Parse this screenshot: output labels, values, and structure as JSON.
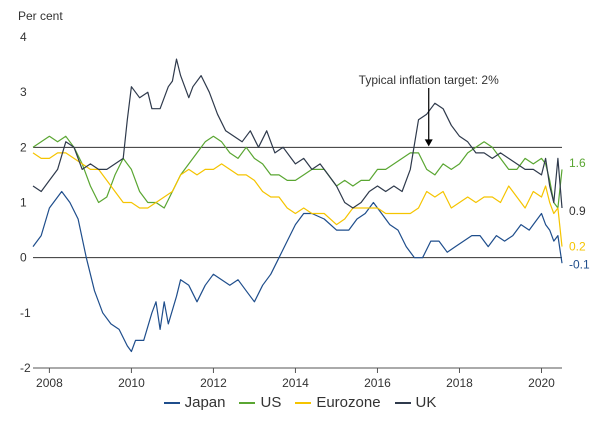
{
  "chart_data": {
    "type": "line",
    "ylabel": "Per cent",
    "xlim": [
      2007.6,
      2020.5
    ],
    "ylim": [
      -2,
      4
    ],
    "x_ticks": [
      2008,
      2010,
      2012,
      2014,
      2016,
      2018,
      2020
    ],
    "y_ticks": [
      4,
      3,
      2,
      1,
      0,
      -1,
      -2
    ],
    "reference_lines": [
      {
        "y": 2,
        "label": "Typical inflation target: 2%",
        "x": 2017.25
      },
      {
        "y": 0
      }
    ],
    "grid": false,
    "legend_position": "bottom",
    "series": [
      {
        "name": "Japan",
        "color": "#1f4e8c",
        "end_label": "-0.1",
        "points": [
          [
            2007.6,
            0.2
          ],
          [
            2007.8,
            0.4
          ],
          [
            2008.0,
            0.9
          ],
          [
            2008.3,
            1.2
          ],
          [
            2008.5,
            1.0
          ],
          [
            2008.7,
            0.7
          ],
          [
            2008.9,
            0.0
          ],
          [
            2009.1,
            -0.6
          ],
          [
            2009.3,
            -1.0
          ],
          [
            2009.5,
            -1.2
          ],
          [
            2009.7,
            -1.3
          ],
          [
            2009.9,
            -1.6
          ],
          [
            2010.0,
            -1.7
          ],
          [
            2010.1,
            -1.5
          ],
          [
            2010.3,
            -1.5
          ],
          [
            2010.5,
            -1.0
          ],
          [
            2010.6,
            -0.8
          ],
          [
            2010.7,
            -1.3
          ],
          [
            2010.8,
            -0.8
          ],
          [
            2010.9,
            -1.2
          ],
          [
            2011.1,
            -0.7
          ],
          [
            2011.2,
            -0.4
          ],
          [
            2011.4,
            -0.5
          ],
          [
            2011.6,
            -0.8
          ],
          [
            2011.8,
            -0.5
          ],
          [
            2012.0,
            -0.3
          ],
          [
            2012.2,
            -0.4
          ],
          [
            2012.4,
            -0.5
          ],
          [
            2012.6,
            -0.4
          ],
          [
            2012.8,
            -0.6
          ],
          [
            2013.0,
            -0.8
          ],
          [
            2013.2,
            -0.5
          ],
          [
            2013.4,
            -0.3
          ],
          [
            2013.6,
            0.0
          ],
          [
            2013.8,
            0.3
          ],
          [
            2014.0,
            0.6
          ],
          [
            2014.2,
            0.8
          ],
          [
            2014.4,
            0.8
          ],
          [
            2014.7,
            0.7
          ],
          [
            2015.0,
            0.5
          ],
          [
            2015.3,
            0.5
          ],
          [
            2015.5,
            0.7
          ],
          [
            2015.7,
            0.8
          ],
          [
            2015.9,
            1.0
          ],
          [
            2016.1,
            0.8
          ],
          [
            2016.3,
            0.6
          ],
          [
            2016.5,
            0.5
          ],
          [
            2016.7,
            0.2
          ],
          [
            2016.9,
            0.0
          ],
          [
            2017.1,
            0.0
          ],
          [
            2017.3,
            0.3
          ],
          [
            2017.5,
            0.3
          ],
          [
            2017.7,
            0.1
          ],
          [
            2017.9,
            0.2
          ],
          [
            2018.1,
            0.3
          ],
          [
            2018.3,
            0.4
          ],
          [
            2018.5,
            0.4
          ],
          [
            2018.7,
            0.2
          ],
          [
            2018.9,
            0.4
          ],
          [
            2019.1,
            0.3
          ],
          [
            2019.3,
            0.4
          ],
          [
            2019.5,
            0.6
          ],
          [
            2019.7,
            0.5
          ],
          [
            2019.9,
            0.7
          ],
          [
            2020.0,
            0.8
          ],
          [
            2020.1,
            0.6
          ],
          [
            2020.2,
            0.5
          ],
          [
            2020.3,
            0.3
          ],
          [
            2020.4,
            0.4
          ],
          [
            2020.5,
            -0.1
          ]
        ]
      },
      {
        "name": "US",
        "color": "#5aa632",
        "end_label": "1.6",
        "points": [
          [
            2007.6,
            2.0
          ],
          [
            2007.8,
            2.1
          ],
          [
            2008.0,
            2.2
          ],
          [
            2008.2,
            2.1
          ],
          [
            2008.4,
            2.2
          ],
          [
            2008.6,
            2.0
          ],
          [
            2008.8,
            1.7
          ],
          [
            2009.0,
            1.3
          ],
          [
            2009.2,
            1.0
          ],
          [
            2009.4,
            1.1
          ],
          [
            2009.6,
            1.5
          ],
          [
            2009.8,
            1.8
          ],
          [
            2010.0,
            1.6
          ],
          [
            2010.2,
            1.2
          ],
          [
            2010.4,
            1.0
          ],
          [
            2010.6,
            1.0
          ],
          [
            2010.8,
            0.9
          ],
          [
            2011.0,
            1.2
          ],
          [
            2011.2,
            1.5
          ],
          [
            2011.4,
            1.7
          ],
          [
            2011.6,
            1.9
          ],
          [
            2011.8,
            2.1
          ],
          [
            2012.0,
            2.2
          ],
          [
            2012.2,
            2.1
          ],
          [
            2012.4,
            1.9
          ],
          [
            2012.6,
            1.8
          ],
          [
            2012.8,
            2.0
          ],
          [
            2013.0,
            1.8
          ],
          [
            2013.2,
            1.7
          ],
          [
            2013.4,
            1.5
          ],
          [
            2013.6,
            1.5
          ],
          [
            2013.8,
            1.4
          ],
          [
            2014.0,
            1.4
          ],
          [
            2014.2,
            1.5
          ],
          [
            2014.4,
            1.6
          ],
          [
            2014.7,
            1.6
          ],
          [
            2015.0,
            1.3
          ],
          [
            2015.2,
            1.4
          ],
          [
            2015.4,
            1.3
          ],
          [
            2015.6,
            1.4
          ],
          [
            2015.8,
            1.4
          ],
          [
            2016.0,
            1.6
          ],
          [
            2016.2,
            1.6
          ],
          [
            2016.4,
            1.7
          ],
          [
            2016.6,
            1.8
          ],
          [
            2016.8,
            1.9
          ],
          [
            2017.0,
            1.9
          ],
          [
            2017.2,
            1.6
          ],
          [
            2017.4,
            1.5
          ],
          [
            2017.6,
            1.7
          ],
          [
            2017.8,
            1.6
          ],
          [
            2018.0,
            1.7
          ],
          [
            2018.2,
            1.9
          ],
          [
            2018.4,
            2.0
          ],
          [
            2018.6,
            2.1
          ],
          [
            2018.8,
            2.0
          ],
          [
            2019.0,
            1.8
          ],
          [
            2019.2,
            1.6
          ],
          [
            2019.4,
            1.6
          ],
          [
            2019.6,
            1.8
          ],
          [
            2019.8,
            1.7
          ],
          [
            2020.0,
            1.8
          ],
          [
            2020.1,
            1.7
          ],
          [
            2020.2,
            1.4
          ],
          [
            2020.3,
            1.0
          ],
          [
            2020.4,
            0.9
          ],
          [
            2020.5,
            1.6
          ]
        ]
      },
      {
        "name": "Eurozone",
        "color": "#f5c400",
        "end_label": "0.2",
        "points": [
          [
            2007.6,
            1.9
          ],
          [
            2007.8,
            1.8
          ],
          [
            2008.0,
            1.8
          ],
          [
            2008.2,
            1.9
          ],
          [
            2008.4,
            1.9
          ],
          [
            2008.6,
            1.8
          ],
          [
            2008.8,
            1.7
          ],
          [
            2009.0,
            1.6
          ],
          [
            2009.2,
            1.6
          ],
          [
            2009.4,
            1.4
          ],
          [
            2009.6,
            1.2
          ],
          [
            2009.8,
            1.0
          ],
          [
            2010.0,
            1.0
          ],
          [
            2010.2,
            0.9
          ],
          [
            2010.4,
            0.9
          ],
          [
            2010.6,
            1.0
          ],
          [
            2010.8,
            1.1
          ],
          [
            2011.0,
            1.2
          ],
          [
            2011.2,
            1.5
          ],
          [
            2011.4,
            1.6
          ],
          [
            2011.6,
            1.5
          ],
          [
            2011.8,
            1.6
          ],
          [
            2012.0,
            1.6
          ],
          [
            2012.2,
            1.7
          ],
          [
            2012.4,
            1.6
          ],
          [
            2012.6,
            1.5
          ],
          [
            2012.8,
            1.5
          ],
          [
            2013.0,
            1.4
          ],
          [
            2013.2,
            1.2
          ],
          [
            2013.4,
            1.1
          ],
          [
            2013.6,
            1.1
          ],
          [
            2013.8,
            0.9
          ],
          [
            2014.0,
            0.8
          ],
          [
            2014.2,
            0.9
          ],
          [
            2014.4,
            0.8
          ],
          [
            2014.7,
            0.8
          ],
          [
            2015.0,
            0.6
          ],
          [
            2015.2,
            0.7
          ],
          [
            2015.4,
            0.9
          ],
          [
            2015.6,
            0.9
          ],
          [
            2015.8,
            0.9
          ],
          [
            2016.0,
            0.9
          ],
          [
            2016.2,
            0.8
          ],
          [
            2016.4,
            0.8
          ],
          [
            2016.6,
            0.8
          ],
          [
            2016.8,
            0.8
          ],
          [
            2017.0,
            0.9
          ],
          [
            2017.2,
            1.2
          ],
          [
            2017.4,
            1.1
          ],
          [
            2017.6,
            1.2
          ],
          [
            2017.8,
            0.9
          ],
          [
            2018.0,
            1.0
          ],
          [
            2018.2,
            1.1
          ],
          [
            2018.4,
            1.0
          ],
          [
            2018.6,
            1.1
          ],
          [
            2018.8,
            1.1
          ],
          [
            2019.0,
            1.0
          ],
          [
            2019.2,
            1.3
          ],
          [
            2019.4,
            1.1
          ],
          [
            2019.6,
            0.9
          ],
          [
            2019.8,
            1.2
          ],
          [
            2020.0,
            1.1
          ],
          [
            2020.1,
            1.3
          ],
          [
            2020.2,
            1.0
          ],
          [
            2020.3,
            0.8
          ],
          [
            2020.4,
            0.9
          ],
          [
            2020.5,
            0.2
          ]
        ]
      },
      {
        "name": "UK",
        "color": "#2f3a4c",
        "end_label": "0.9",
        "points": [
          [
            2007.6,
            1.3
          ],
          [
            2007.8,
            1.2
          ],
          [
            2008.0,
            1.4
          ],
          [
            2008.2,
            1.6
          ],
          [
            2008.4,
            2.1
          ],
          [
            2008.6,
            2.0
          ],
          [
            2008.8,
            1.6
          ],
          [
            2009.0,
            1.7
          ],
          [
            2009.2,
            1.6
          ],
          [
            2009.4,
            1.6
          ],
          [
            2009.6,
            1.7
          ],
          [
            2009.8,
            1.8
          ],
          [
            2009.9,
            2.5
          ],
          [
            2010.0,
            3.1
          ],
          [
            2010.2,
            2.9
          ],
          [
            2010.4,
            3.0
          ],
          [
            2010.5,
            2.7
          ],
          [
            2010.7,
            2.7
          ],
          [
            2010.9,
            3.1
          ],
          [
            2011.0,
            3.2
          ],
          [
            2011.1,
            3.6
          ],
          [
            2011.2,
            3.3
          ],
          [
            2011.4,
            2.9
          ],
          [
            2011.5,
            3.1
          ],
          [
            2011.7,
            3.3
          ],
          [
            2011.9,
            3.0
          ],
          [
            2012.1,
            2.6
          ],
          [
            2012.3,
            2.3
          ],
          [
            2012.5,
            2.2
          ],
          [
            2012.7,
            2.1
          ],
          [
            2012.9,
            2.3
          ],
          [
            2013.1,
            2.0
          ],
          [
            2013.3,
            2.3
          ],
          [
            2013.5,
            1.9
          ],
          [
            2013.7,
            2.0
          ],
          [
            2013.9,
            1.8
          ],
          [
            2014.0,
            1.7
          ],
          [
            2014.2,
            1.8
          ],
          [
            2014.4,
            1.6
          ],
          [
            2014.6,
            1.7
          ],
          [
            2014.8,
            1.5
          ],
          [
            2015.0,
            1.3
          ],
          [
            2015.2,
            1.0
          ],
          [
            2015.4,
            0.9
          ],
          [
            2015.6,
            1.0
          ],
          [
            2015.8,
            1.2
          ],
          [
            2016.0,
            1.3
          ],
          [
            2016.2,
            1.2
          ],
          [
            2016.4,
            1.3
          ],
          [
            2016.6,
            1.2
          ],
          [
            2016.8,
            1.6
          ],
          [
            2017.0,
            2.5
          ],
          [
            2017.2,
            2.6
          ],
          [
            2017.4,
            2.8
          ],
          [
            2017.6,
            2.7
          ],
          [
            2017.8,
            2.4
          ],
          [
            2018.0,
            2.2
          ],
          [
            2018.2,
            2.1
          ],
          [
            2018.4,
            1.9
          ],
          [
            2018.6,
            1.9
          ],
          [
            2018.8,
            1.8
          ],
          [
            2019.0,
            1.9
          ],
          [
            2019.2,
            1.8
          ],
          [
            2019.4,
            1.7
          ],
          [
            2019.6,
            1.6
          ],
          [
            2019.8,
            1.6
          ],
          [
            2020.0,
            1.5
          ],
          [
            2020.1,
            1.8
          ],
          [
            2020.2,
            1.3
          ],
          [
            2020.3,
            1.0
          ],
          [
            2020.4,
            1.8
          ],
          [
            2020.5,
            0.9
          ]
        ]
      }
    ]
  }
}
